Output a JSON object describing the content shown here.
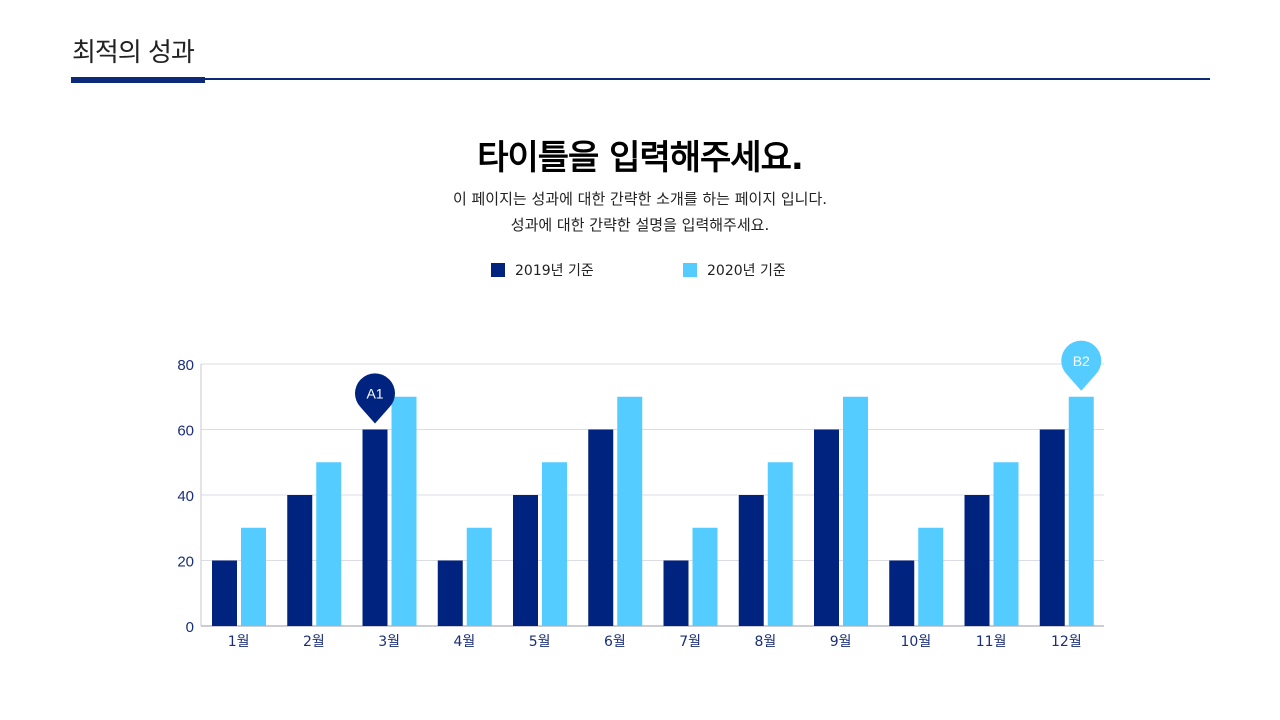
{
  "header": {
    "title": "최적의 성과"
  },
  "main": {
    "title": "타이틀을 입력해주세요.",
    "subtitle_lines": [
      "이 페이지는 성과에 대한 간략한 소개를 하는 페이지 입니다.",
      "성과에 대한 간략한 설명을 입력해주세요."
    ]
  },
  "chart_data": {
    "type": "bar",
    "categories": [
      "1월",
      "2월",
      "3월",
      "4월",
      "5월",
      "6월",
      "7월",
      "8월",
      "9월",
      "10월",
      "11월",
      "12월"
    ],
    "series": [
      {
        "name": "2019년 기준",
        "color": "#00237f",
        "values": [
          20,
          40,
          60,
          20,
          40,
          60,
          20,
          40,
          60,
          20,
          40,
          60
        ]
      },
      {
        "name": "2020년 기준",
        "color": "#55ccff",
        "values": [
          30,
          50,
          70,
          30,
          50,
          70,
          30,
          50,
          70,
          30,
          50,
          70
        ]
      }
    ],
    "ylim": [
      0,
      80
    ],
    "yticks": [
      0,
      20,
      40,
      60,
      80
    ],
    "grid": true,
    "legend": "top",
    "annotations": [
      {
        "label": "A1",
        "category": "3월",
        "color": "#00237f"
      },
      {
        "label": "B2",
        "category": "12월",
        "color": "#55ccff"
      }
    ]
  }
}
